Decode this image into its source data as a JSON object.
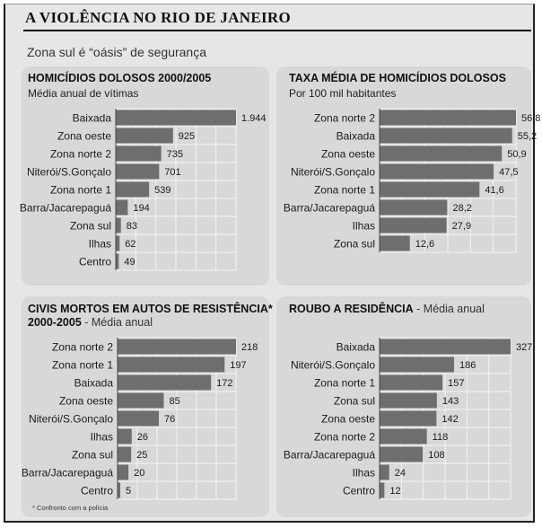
{
  "header": {
    "title": "A VIOLÊNCIA NO RIO DE JANEIRO",
    "subtitle": "Zona sul é “oásis” de segurança"
  },
  "footnote": "* Confronto com a polícia",
  "colors": {
    "bar": "#6e6e6e",
    "panel": "#d8d8d8",
    "grid": "#f4f4f4"
  },
  "chart_data": [
    {
      "type": "bar",
      "orientation": "horizontal",
      "title": "HOMICÍDIOS DOLOSOS 2000/2005",
      "subtitle": "Média anual de vítimas",
      "categories": [
        "Baixada",
        "Zona oeste",
        "Zona norte 2",
        "Niterói/S.Gonçalo",
        "Zona norte 1",
        "Barra/Jacarepaguá",
        "Zona sul",
        "Ilhas",
        "Centro"
      ],
      "values": [
        1944,
        925,
        735,
        701,
        539,
        194,
        83,
        62,
        49
      ],
      "value_labels": [
        "1.944",
        "925",
        "735",
        "701",
        "539",
        "194",
        "83",
        "62",
        "49"
      ]
    },
    {
      "type": "bar",
      "orientation": "horizontal",
      "title": "TAXA MÉDIA DE HOMICÍDIOS DOLOSOS",
      "subtitle": "Por 100 mil habitantes",
      "categories": [
        "Zona norte 2",
        "Baixada",
        "Zona oeste",
        "Niterói/S.Gonçalo",
        "Zona norte 1",
        "Barra/Jacarepaguá",
        "Ilhas",
        "Zona sul"
      ],
      "values": [
        56.8,
        55.2,
        50.9,
        47.5,
        41.6,
        28.2,
        27.9,
        12.6
      ],
      "value_labels": [
        "56,8",
        "55,2",
        "50,9",
        "47,5",
        "41,6",
        "28,2",
        "27,9",
        "12,6"
      ]
    },
    {
      "type": "bar",
      "orientation": "horizontal",
      "title": "CIVIS MORTOS EM AUTOS DE RESISTÊNCIA*",
      "subtitle_bold": "2000-2005",
      "subtitle": " - Média anual",
      "categories": [
        "Zona norte 2",
        "Zona norte 1",
        "Baixada",
        "Zona oeste",
        "Niterói/S.Gonçalo",
        "Ilhas",
        "Zona sul",
        "Barra/Jacarepaguá",
        "Centro"
      ],
      "values": [
        218,
        197,
        172,
        85,
        76,
        26,
        25,
        20,
        5
      ],
      "value_labels": [
        "218",
        "197",
        "172",
        "85",
        "76",
        "26",
        "25",
        "20",
        "5"
      ]
    },
    {
      "type": "bar",
      "orientation": "horizontal",
      "title": "ROUBO A RESIDÊNCIA",
      "subtitle": " - Média anual",
      "categories": [
        "Baixada",
        "Niterói/S.Gonçalo",
        "Zona norte 1",
        "Zona sul",
        "Zona oeste",
        "Zona norte 2",
        "Barra/Jacarepaguá",
        "Ilhas",
        "Centro"
      ],
      "values": [
        327,
        186,
        157,
        143,
        142,
        118,
        108,
        24,
        12
      ],
      "value_labels": [
        "327",
        "186",
        "157",
        "143",
        "142",
        "118",
        "108",
        "24",
        "12"
      ]
    }
  ]
}
